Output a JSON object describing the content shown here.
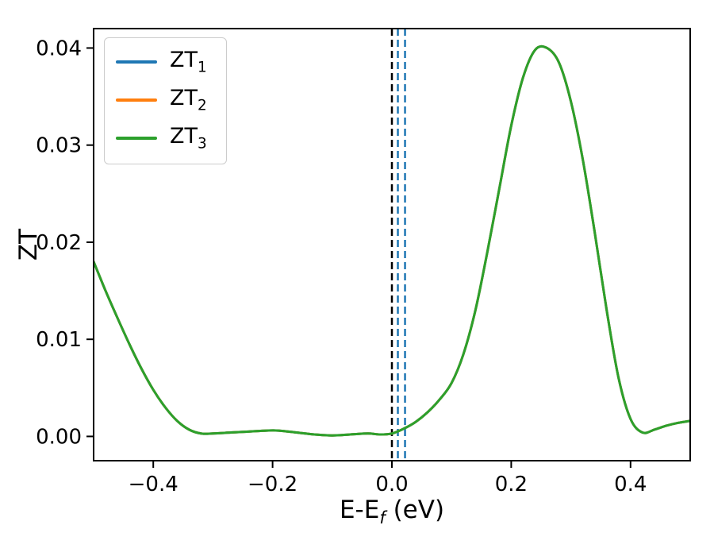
{
  "chart_data": {
    "type": "line",
    "title": "",
    "ylabel": "ZT",
    "xlabel": {
      "main": "E-E",
      "sub": "f",
      "suffix": " (eV)"
    },
    "xlim": [
      -0.5,
      0.5
    ],
    "ylim": [
      -0.0025,
      0.042
    ],
    "grid": false,
    "xticks": [
      {
        "value": -0.4,
        "label": "−0.4"
      },
      {
        "value": -0.2,
        "label": "−0.2"
      },
      {
        "value": 0.0,
        "label": "0.0"
      },
      {
        "value": 0.2,
        "label": "0.2"
      },
      {
        "value": 0.4,
        "label": "0.4"
      }
    ],
    "yticks": [
      {
        "value": 0.0,
        "label": "0.00"
      },
      {
        "value": 0.01,
        "label": "0.01"
      },
      {
        "value": 0.02,
        "label": "0.02"
      },
      {
        "value": 0.03,
        "label": "0.03"
      },
      {
        "value": 0.04,
        "label": "0.04"
      }
    ],
    "legend": {
      "position": "upper-left",
      "entries": [
        {
          "base": "ZT",
          "sub": "1",
          "color": "#1f77b4"
        },
        {
          "base": "ZT",
          "sub": "2",
          "color": "#ff7f0e"
        },
        {
          "base": "ZT",
          "sub": "3",
          "color": "#2ca02c"
        }
      ]
    },
    "x": [
      -0.5,
      -0.48,
      -0.46,
      -0.44,
      -0.42,
      -0.4,
      -0.38,
      -0.36,
      -0.34,
      -0.32,
      -0.3,
      -0.27,
      -0.24,
      -0.21,
      -0.19,
      -0.16,
      -0.13,
      -0.1,
      -0.07,
      -0.04,
      -0.02,
      0.0,
      0.02,
      0.04,
      0.06,
      0.08,
      0.1,
      0.12,
      0.14,
      0.16,
      0.18,
      0.2,
      0.22,
      0.24,
      0.26,
      0.28,
      0.3,
      0.32,
      0.34,
      0.36,
      0.38,
      0.4,
      0.42,
      0.44,
      0.46,
      0.48,
      0.5
    ],
    "series": [
      {
        "name": "ZT1",
        "color": "#1f77b4",
        "values": [
          0.018,
          0.015,
          0.0122,
          0.0095,
          0.007,
          0.0048,
          0.003,
          0.0016,
          0.0007,
          0.0003,
          0.0003,
          0.0004,
          0.0005,
          0.0006,
          0.0006,
          0.0004,
          0.0002,
          0.0001,
          0.0002,
          0.0003,
          0.0002,
          0.0003,
          0.0008,
          0.0015,
          0.0025,
          0.0038,
          0.0055,
          0.0085,
          0.013,
          0.019,
          0.0255,
          0.032,
          0.037,
          0.0398,
          0.04,
          0.0385,
          0.0345,
          0.0285,
          0.021,
          0.013,
          0.006,
          0.0018,
          0.0004,
          0.0007,
          0.0011,
          0.0014,
          0.0016
        ]
      },
      {
        "name": "ZT2",
        "color": "#ff7f0e",
        "values": [
          0.018,
          0.015,
          0.0122,
          0.0095,
          0.007,
          0.0048,
          0.003,
          0.0016,
          0.0007,
          0.0003,
          0.0003,
          0.0004,
          0.0005,
          0.0006,
          0.0006,
          0.0004,
          0.0002,
          0.0001,
          0.0002,
          0.0003,
          0.0002,
          0.0003,
          0.0008,
          0.0015,
          0.0025,
          0.0038,
          0.0055,
          0.0085,
          0.013,
          0.019,
          0.0255,
          0.032,
          0.037,
          0.0398,
          0.04,
          0.0385,
          0.0345,
          0.0285,
          0.021,
          0.013,
          0.006,
          0.0018,
          0.0004,
          0.0007,
          0.0011,
          0.0014,
          0.0016
        ]
      },
      {
        "name": "ZT3",
        "color": "#2ca02c",
        "values": [
          0.018,
          0.015,
          0.0122,
          0.0095,
          0.007,
          0.0048,
          0.003,
          0.0016,
          0.0007,
          0.0003,
          0.0003,
          0.0004,
          0.0005,
          0.0006,
          0.0006,
          0.0004,
          0.0002,
          0.0001,
          0.0002,
          0.0003,
          0.0002,
          0.0003,
          0.0008,
          0.0015,
          0.0025,
          0.0038,
          0.0055,
          0.0085,
          0.013,
          0.019,
          0.0255,
          0.032,
          0.037,
          0.0398,
          0.04,
          0.0385,
          0.0345,
          0.0285,
          0.021,
          0.013,
          0.006,
          0.0018,
          0.0004,
          0.0007,
          0.0011,
          0.0014,
          0.0016
        ]
      }
    ],
    "vlines": [
      {
        "x": 0.0,
        "color": "#000000",
        "style": "dashed",
        "width": 2.5
      },
      {
        "x": 0.01,
        "color": "#1f77b4",
        "style": "dashed",
        "width": 2.5
      },
      {
        "x": 0.022,
        "color": "#1f77b4",
        "style": "dashed",
        "width": 2.5
      }
    ]
  }
}
